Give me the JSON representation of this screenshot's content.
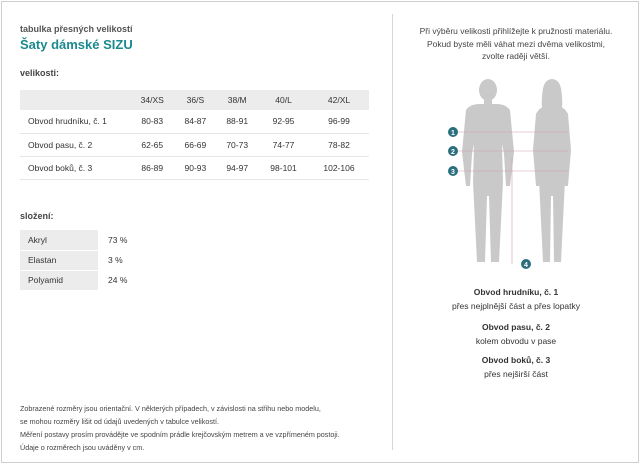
{
  "subtitle": "tabulka přesných velikostí",
  "title": "Šaty dámské SIZU",
  "sizes_label": "velikosti:",
  "size_table": {
    "headers": [
      "",
      "34/XS",
      "36/S",
      "38/M",
      "40/L",
      "42/XL"
    ],
    "rows": [
      {
        "label": "Obvod hrudníku, č. 1",
        "values": [
          "80-83",
          "84-87",
          "88-91",
          "92-95",
          "96-99"
        ]
      },
      {
        "label": "Obvod pasu, č. 2",
        "values": [
          "62-65",
          "66-69",
          "70-73",
          "74-77",
          "78-82"
        ]
      },
      {
        "label": "Obvod boků, č. 3",
        "values": [
          "86-89",
          "90-93",
          "94-97",
          "98-101",
          "102-106"
        ]
      }
    ]
  },
  "composition_label": "složení:",
  "composition": [
    {
      "material": "Akryl",
      "percent": "73 %"
    },
    {
      "material": "Elastan",
      "percent": "3 %"
    },
    {
      "material": "Polyamid",
      "percent": "24 %"
    }
  ],
  "footnote": [
    "Zobrazené rozměry jsou orientační. V některých případech, v závislosti na střihu nebo modelu,",
    "se mohou rozměry lišit od údajů uvedených v tabulce velikostí.",
    "Měření postavy prosím provádějte ve spodním prádle krejčovským metrem a ve vzpřímeném postoji.",
    "Údaje o rozměrech jsou uváděny v cm."
  ],
  "tip": [
    "Při výběru velikosti přihlížejte k pružnosti materiálu.",
    "Pokud byste měli váhat mezi dvěma velikostmi,",
    "zvolte raději větší."
  ],
  "markers": [
    "1",
    "2",
    "3",
    "4"
  ],
  "legend": [
    {
      "heading": "Obvod hrudníku, č. 1",
      "text": "přes nejplnější část a přes lopatky"
    },
    {
      "heading": "Obvod pasu, č. 2",
      "text": "kolem obvodu v pase"
    },
    {
      "heading": "Obvod boků, č. 3",
      "text": "přes nejširší část"
    }
  ],
  "colors": {
    "accent": "#1b8a8f",
    "marker": "#2b6f7f",
    "header_bg": "#ececec",
    "figure": "#c9c9c9"
  }
}
